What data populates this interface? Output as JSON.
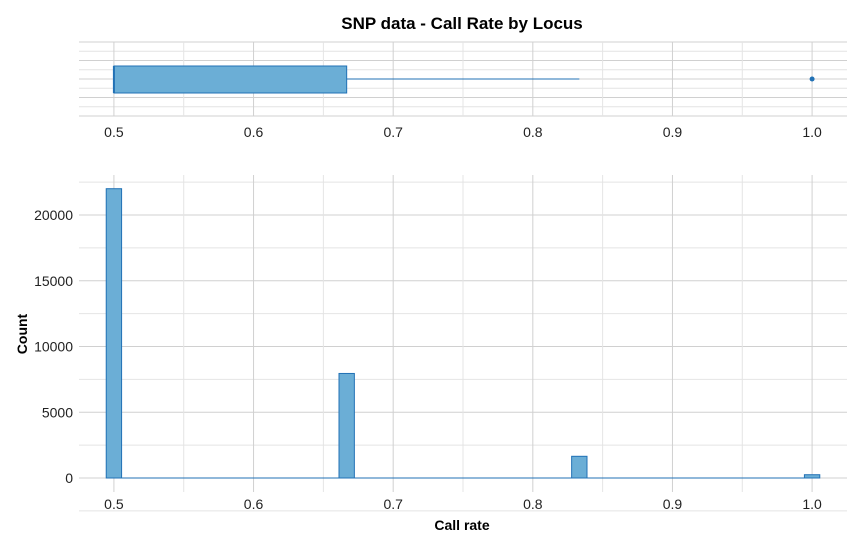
{
  "chart_data": [
    {
      "type": "boxplot",
      "title": "SNP data - Call Rate by Locus",
      "xlabel": "",
      "ylabel": "",
      "xlim": [
        0.475,
        1.025
      ],
      "x_ticks": [
        "0.5",
        "0.6",
        "0.7",
        "0.8",
        "0.9",
        "1.0"
      ],
      "box": {
        "min": 0.5,
        "q1": 0.5,
        "median": 0.5,
        "q3": 0.6667,
        "whisker_high": 0.8333
      },
      "outliers": [
        1.0
      ],
      "grid": true,
      "colors": {
        "fill": "#6baed6",
        "stroke": "#2171b5"
      }
    },
    {
      "type": "histogram",
      "title": "",
      "xlabel": "Call rate",
      "ylabel": "Count",
      "xlim": [
        0.475,
        1.025
      ],
      "ylim": [
        0,
        23000
      ],
      "x_ticks": [
        "0.5",
        "0.6",
        "0.7",
        "0.8",
        "0.9",
        "1.0"
      ],
      "y_ticks": [
        "0",
        "5000",
        "10000",
        "15000",
        "20000"
      ],
      "bin_width": 0.011,
      "bars": [
        {
          "x": 0.5,
          "count": 22000
        },
        {
          "x": 0.6667,
          "count": 7950
        },
        {
          "x": 0.8333,
          "count": 1650
        },
        {
          "x": 1.0,
          "count": 250
        }
      ],
      "grid": true,
      "colors": {
        "fill": "#6baed6",
        "stroke": "#2171b5"
      }
    }
  ]
}
